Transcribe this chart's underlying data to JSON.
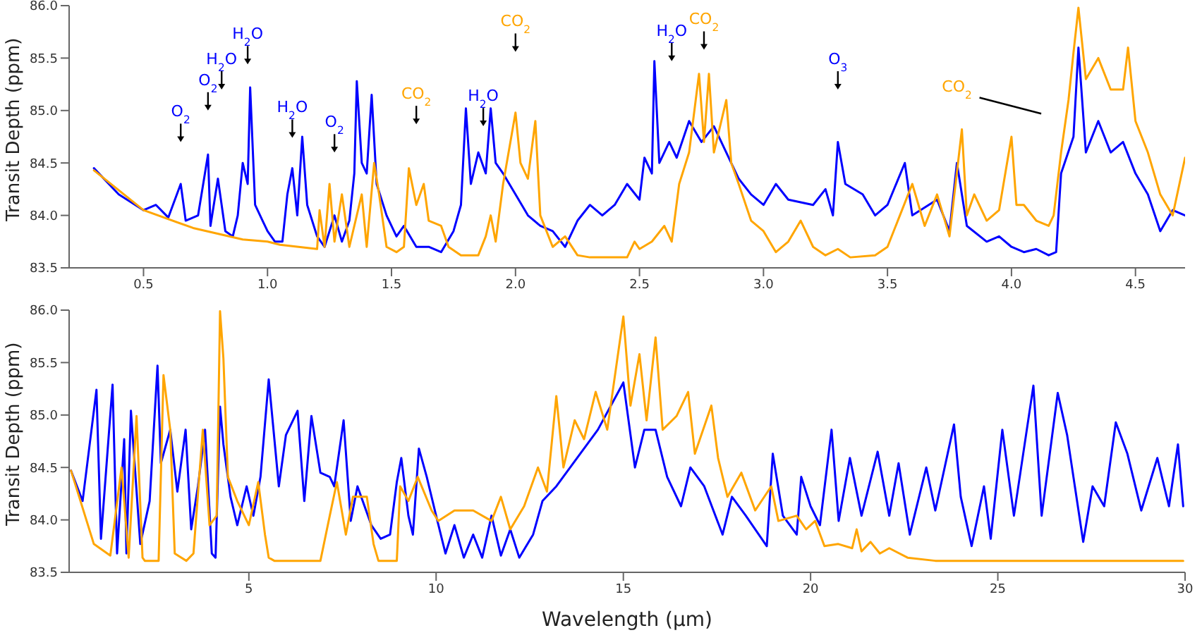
{
  "chart_data": [
    {
      "type": "line",
      "ylabel": "Transit Depth (ppm)",
      "xlim": [
        0.2,
        4.7
      ],
      "xticks": [
        0.5,
        {
          "value": 1,
          "label": "1.0"
        },
        1.5,
        {
          "value": 2,
          "label": "2.0"
        },
        2.5,
        {
          "value": 3,
          "label": "3.0"
        },
        3.5,
        {
          "value": 4,
          "label": "4.0"
        },
        4.5
      ],
      "ylim": [
        83.5,
        86
      ],
      "yticks": [
        83.5,
        {
          "value": 84,
          "label": "84.0"
        },
        84.5,
        {
          "value": 85,
          "label": "85.0"
        },
        85.5,
        {
          "value": 86,
          "label": "86.0"
        }
      ],
      "grid": false,
      "legend": false,
      "marker": "none",
      "line_style": "solid",
      "annotations": [
        "O$_{2}$",
        "O$_{2}$",
        "H$_{2}$O",
        "H$_{2}$O",
        "H$_{2}$O",
        "O$_{2}$",
        "CO$_{2}$",
        "H$_{2}$O",
        "CO$_{2}$",
        "H$_{2}$O",
        "CO$_{2}$",
        "O$_{3}$",
        "CO$_{2}$"
      ],
      "series": [
        {
          "color": "#0000ff",
          "x": [
            0.3,
            0.4,
            0.5,
            0.55,
            0.6,
            0.65,
            0.67,
            0.72,
            0.76,
            0.77,
            0.8,
            0.83,
            0.86,
            0.88,
            0.9,
            0.92,
            0.93,
            0.95,
            0.98,
            1.0,
            1.03,
            1.06,
            1.08,
            1.1,
            1.12,
            1.14,
            1.16,
            1.2,
            1.23,
            1.27,
            1.3,
            1.33,
            1.35,
            1.36,
            1.38,
            1.4,
            1.42,
            1.44,
            1.48,
            1.52,
            1.55,
            1.6,
            1.65,
            1.7,
            1.75,
            1.78,
            1.8,
            1.82,
            1.85,
            1.88,
            1.9,
            1.92,
            1.95,
            2.0,
            2.05,
            2.1,
            2.15,
            2.2,
            2.25,
            2.3,
            2.35,
            2.4,
            2.45,
            2.5,
            2.52,
            2.55,
            2.56,
            2.58,
            2.62,
            2.65,
            2.7,
            2.75,
            2.8,
            2.85,
            2.9,
            2.95,
            3.0,
            3.05,
            3.1,
            3.2,
            3.25,
            3.28,
            3.3,
            3.33,
            3.4,
            3.45,
            3.5,
            3.57,
            3.6,
            3.7,
            3.75,
            3.78,
            3.82,
            3.9,
            3.95,
            4.0,
            4.05,
            4.1,
            4.15,
            4.18,
            4.2,
            4.25,
            4.27,
            4.3,
            4.35,
            4.4,
            4.45,
            4.5,
            4.55,
            4.6,
            4.65,
            4.7
          ],
          "values": [
            84.45,
            84.2,
            84.05,
            84.1,
            83.98,
            84.3,
            83.95,
            84.0,
            84.58,
            83.9,
            84.35,
            83.85,
            83.8,
            84.0,
            84.5,
            84.3,
            85.22,
            84.1,
            83.95,
            83.85,
            83.75,
            83.75,
            84.2,
            84.45,
            84.0,
            84.75,
            84.1,
            83.8,
            83.7,
            84.0,
            83.75,
            83.95,
            84.4,
            85.28,
            84.5,
            84.4,
            85.15,
            84.3,
            84.0,
            83.8,
            83.9,
            83.7,
            83.7,
            83.65,
            83.85,
            84.1,
            85.02,
            84.3,
            84.6,
            84.4,
            85.02,
            84.5,
            84.4,
            84.2,
            84.0,
            83.9,
            83.85,
            83.7,
            83.95,
            84.1,
            84.0,
            84.1,
            84.3,
            84.15,
            84.55,
            84.4,
            85.47,
            84.5,
            84.7,
            84.55,
            84.9,
            84.7,
            84.85,
            84.6,
            84.35,
            84.2,
            84.1,
            84.3,
            84.15,
            84.1,
            84.25,
            84.0,
            84.7,
            84.3,
            84.2,
            84.0,
            84.1,
            84.5,
            84.0,
            84.15,
            83.85,
            84.5,
            83.9,
            83.75,
            83.8,
            83.7,
            83.65,
            83.68,
            83.62,
            83.65,
            84.4,
            84.75,
            85.6,
            84.6,
            84.9,
            84.6,
            84.7,
            84.4,
            84.2,
            83.85,
            84.05,
            84.0
          ]
        },
        {
          "color": "#ffa500",
          "x": [
            0.3,
            0.5,
            0.7,
            0.9,
            1.0,
            1.05,
            1.2,
            1.21,
            1.23,
            1.25,
            1.27,
            1.3,
            1.33,
            1.38,
            1.4,
            1.43,
            1.45,
            1.48,
            1.52,
            1.55,
            1.57,
            1.6,
            1.63,
            1.65,
            1.7,
            1.73,
            1.78,
            1.85,
            1.88,
            1.9,
            1.92,
            1.95,
            2.0,
            2.02,
            2.05,
            2.08,
            2.1,
            2.15,
            2.2,
            2.25,
            2.3,
            2.45,
            2.48,
            2.5,
            2.55,
            2.6,
            2.63,
            2.66,
            2.7,
            2.74,
            2.76,
            2.78,
            2.8,
            2.85,
            2.87,
            2.9,
            2.95,
            3.0,
            3.05,
            3.1,
            3.15,
            3.2,
            3.25,
            3.3,
            3.35,
            3.45,
            3.5,
            3.55,
            3.6,
            3.65,
            3.7,
            3.75,
            3.8,
            3.82,
            3.85,
            3.9,
            3.95,
            4.0,
            4.02,
            4.05,
            4.1,
            4.15,
            4.17,
            4.2,
            4.23,
            4.25,
            4.27,
            4.3,
            4.35,
            4.4,
            4.45,
            4.47,
            4.5,
            4.55,
            4.6,
            4.65,
            4.7
          ],
          "values": [
            84.43,
            84.05,
            83.88,
            83.77,
            83.75,
            83.72,
            83.68,
            84.05,
            83.7,
            84.3,
            83.75,
            84.2,
            83.7,
            84.2,
            83.7,
            84.5,
            84.2,
            83.7,
            83.65,
            83.7,
            84.45,
            84.1,
            84.3,
            83.95,
            83.9,
            83.7,
            83.62,
            83.62,
            83.8,
            84.0,
            83.75,
            84.3,
            84.98,
            84.5,
            84.35,
            84.9,
            84.0,
            83.7,
            83.8,
            83.62,
            83.6,
            83.6,
            83.75,
            83.68,
            83.75,
            83.9,
            83.75,
            84.3,
            84.6,
            85.35,
            84.7,
            85.35,
            84.6,
            85.1,
            84.5,
            84.3,
            83.95,
            83.85,
            83.65,
            83.75,
            83.95,
            83.7,
            83.62,
            83.68,
            83.6,
            83.62,
            83.7,
            84.0,
            84.3,
            83.9,
            84.2,
            83.8,
            84.82,
            84.0,
            84.2,
            83.95,
            84.05,
            84.75,
            84.1,
            84.1,
            83.95,
            83.9,
            84.0,
            84.6,
            85.1,
            85.55,
            85.98,
            85.3,
            85.5,
            85.2,
            85.2,
            85.6,
            84.9,
            84.6,
            84.2,
            84.0,
            84.55
          ]
        }
      ]
    },
    {
      "type": "line",
      "xlabel": "Wavelength (μm)",
      "ylabel": "Transit Depth (ppm)",
      "xlim": [
        0.2,
        30
      ],
      "xticks": [
        5,
        10,
        15,
        20,
        25,
        30
      ],
      "ylim": [
        83.5,
        86
      ],
      "yticks": [
        83.5,
        {
          "value": 84,
          "label": "84.0"
        },
        84.5,
        {
          "value": 85,
          "label": "85.0"
        },
        85.5,
        {
          "value": 86,
          "label": "86.0"
        }
      ],
      "grid": false,
      "legend": false,
      "marker": "none",
      "line_style": "solid",
      "series": [
        {
          "color": "#0000ff",
          "x": [
            0.25,
            0.56,
            0.93,
            1.05,
            1.36,
            1.48,
            1.67,
            1.73,
            1.85,
            2.1,
            2.35,
            2.56,
            2.65,
            2.9,
            3.09,
            3.31,
            3.46,
            3.64,
            3.83,
            4.01,
            4.11,
            4.23,
            4.32,
            4.51,
            4.69,
            4.94,
            5.12,
            5.31,
            5.53,
            5.8,
            5.99,
            6.3,
            6.48,
            6.67,
            6.91,
            7.16,
            7.28,
            7.53,
            7.72,
            7.9,
            8.27,
            8.52,
            8.77,
            8.95,
            9.07,
            9.26,
            9.38,
            9.54,
            9.75,
            10.0,
            10.25,
            10.49,
            10.74,
            10.99,
            11.23,
            11.48,
            11.73,
            11.98,
            12.22,
            12.59,
            12.84,
            13.21,
            13.58,
            14.32,
            15.0,
            15.31,
            15.56,
            15.86,
            16.17,
            16.54,
            16.79,
            17.16,
            17.65,
            17.9,
            18.27,
            18.83,
            18.99,
            19.26,
            19.63,
            19.75,
            20.0,
            20.25,
            20.56,
            20.75,
            21.05,
            21.36,
            21.79,
            22.1,
            22.35,
            22.65,
            23.09,
            23.33,
            23.83,
            24.01,
            24.3,
            24.63,
            24.81,
            25.12,
            25.43,
            25.95,
            26.17,
            26.6,
            26.85,
            27.28,
            27.53,
            27.84,
            28.15,
            28.46,
            28.83,
            29.26,
            29.57,
            29.81,
            29.95
          ],
          "values": [
            84.47,
            84.18,
            85.24,
            83.82,
            85.29,
            83.68,
            84.77,
            83.68,
            85.04,
            83.77,
            84.18,
            85.47,
            84.54,
            84.86,
            84.27,
            84.86,
            83.91,
            84.32,
            84.86,
            83.68,
            83.64,
            85.08,
            84.72,
            84.22,
            83.95,
            84.32,
            84.04,
            84.41,
            85.34,
            84.32,
            84.81,
            85.04,
            84.18,
            84.99,
            84.45,
            84.41,
            84.32,
            84.95,
            83.99,
            84.32,
            83.95,
            83.82,
            83.86,
            84.36,
            84.59,
            84.04,
            83.86,
            84.68,
            84.41,
            84.04,
            83.68,
            83.95,
            83.64,
            83.86,
            83.64,
            84.04,
            83.66,
            83.91,
            83.64,
            83.86,
            84.18,
            84.32,
            84.5,
            84.86,
            85.31,
            84.5,
            84.86,
            84.86,
            84.41,
            84.13,
            84.5,
            84.32,
            83.86,
            84.22,
            84.04,
            83.75,
            84.63,
            84.04,
            83.86,
            84.41,
            84.13,
            83.95,
            84.86,
            83.99,
            84.59,
            84.04,
            84.65,
            84.04,
            84.54,
            83.86,
            84.5,
            84.09,
            84.91,
            84.22,
            83.75,
            84.32,
            83.82,
            84.86,
            84.04,
            85.28,
            84.04,
            85.21,
            84.81,
            83.79,
            84.32,
            84.13,
            84.93,
            84.63,
            84.09,
            84.59,
            84.13,
            84.72,
            84.13
          ]
        },
        {
          "color": "#ffa500",
          "x": [
            0.25,
            0.86,
            1.3,
            1.6,
            1.79,
            2.0,
            2.16,
            2.22,
            2.59,
            2.72,
            2.9,
            3.02,
            3.33,
            3.52,
            3.77,
            3.95,
            4.14,
            4.23,
            4.32,
            4.44,
            4.69,
            5.0,
            5.25,
            5.43,
            5.53,
            5.68,
            6.91,
            7.16,
            7.35,
            7.59,
            7.78,
            8.15,
            8.33,
            8.46,
            8.95,
            9.04,
            9.26,
            9.51,
            9.88,
            10.06,
            10.49,
            10.99,
            11.48,
            11.73,
            11.98,
            12.35,
            12.72,
            12.96,
            13.21,
            13.4,
            13.7,
            13.95,
            14.26,
            14.57,
            15.0,
            15.19,
            15.43,
            15.62,
            15.86,
            16.05,
            16.42,
            16.73,
            16.91,
            17.35,
            17.53,
            17.78,
            18.15,
            18.52,
            18.95,
            19.14,
            19.63,
            19.88,
            20.12,
            20.37,
            20.74,
            21.11,
            21.23,
            21.36,
            21.6,
            21.85,
            22.1,
            22.59,
            23.33,
            29.95
          ],
          "values": [
            84.47,
            83.77,
            83.66,
            84.5,
            83.64,
            84.99,
            83.64,
            83.61,
            83.61,
            85.38,
            84.86,
            83.68,
            83.61,
            83.68,
            84.86,
            83.95,
            84.04,
            85.99,
            85.54,
            84.41,
            84.18,
            83.95,
            84.36,
            83.86,
            83.64,
            83.61,
            83.61,
            84.04,
            84.36,
            83.86,
            84.22,
            84.22,
            83.77,
            83.61,
            83.61,
            84.32,
            84.18,
            84.41,
            84.09,
            83.99,
            84.09,
            84.09,
            83.99,
            84.22,
            83.91,
            84.13,
            84.5,
            84.27,
            85.18,
            84.5,
            84.95,
            84.77,
            85.22,
            84.86,
            85.94,
            85.09,
            85.58,
            84.95,
            85.74,
            84.86,
            84.99,
            85.22,
            84.63,
            85.09,
            84.59,
            84.22,
            84.45,
            84.09,
            84.32,
            83.99,
            84.04,
            83.91,
            83.99,
            83.75,
            83.77,
            83.73,
            83.91,
            83.7,
            83.79,
            83.68,
            83.73,
            83.64,
            83.61,
            83.61
          ]
        }
      ]
    }
  ]
}
